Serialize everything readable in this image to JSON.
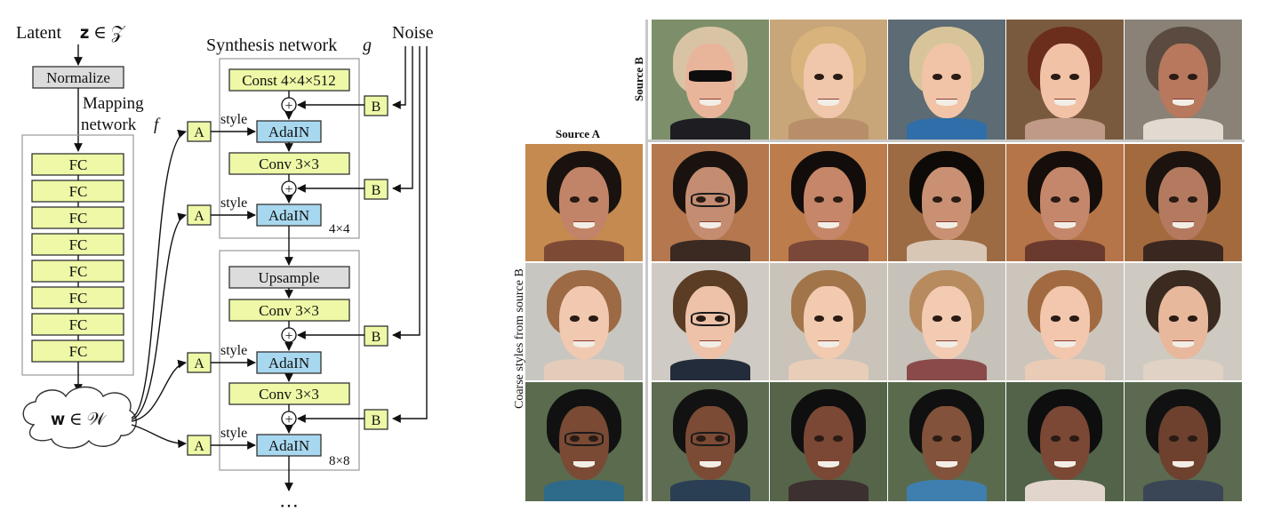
{
  "mapping": {
    "latent_label": "Latent",
    "latent_math": "𝐳 ∈ 𝒵",
    "normalize": "Normalize",
    "mapping_line1": "Mapping",
    "mapping_line2": "network",
    "mapping_f": "f",
    "fc_labels": [
      "FC",
      "FC",
      "FC",
      "FC",
      "FC",
      "FC",
      "FC",
      "FC"
    ],
    "w_label": "𝐰 ∈ 𝒲"
  },
  "synthesis": {
    "title": "Synthesis network",
    "title_g": "g",
    "noise": "Noise",
    "const": "Const 4×4×512",
    "upsample": "Upsample",
    "conv": "Conv 3×3",
    "adain": "AdaIN",
    "style": "style",
    "a": "A",
    "b": "B",
    "plus": "+",
    "res1": "4×4",
    "res2": "8×8",
    "ellipsis": "⋯"
  },
  "grid": {
    "source_a": "Source A",
    "source_b": "Source B",
    "row_caption": "Coarse styles from source B"
  },
  "colors": {
    "fc_fill": "#eef8a6",
    "adain_fill": "#a8d8ef",
    "gray_fill": "#dcdcdc"
  }
}
